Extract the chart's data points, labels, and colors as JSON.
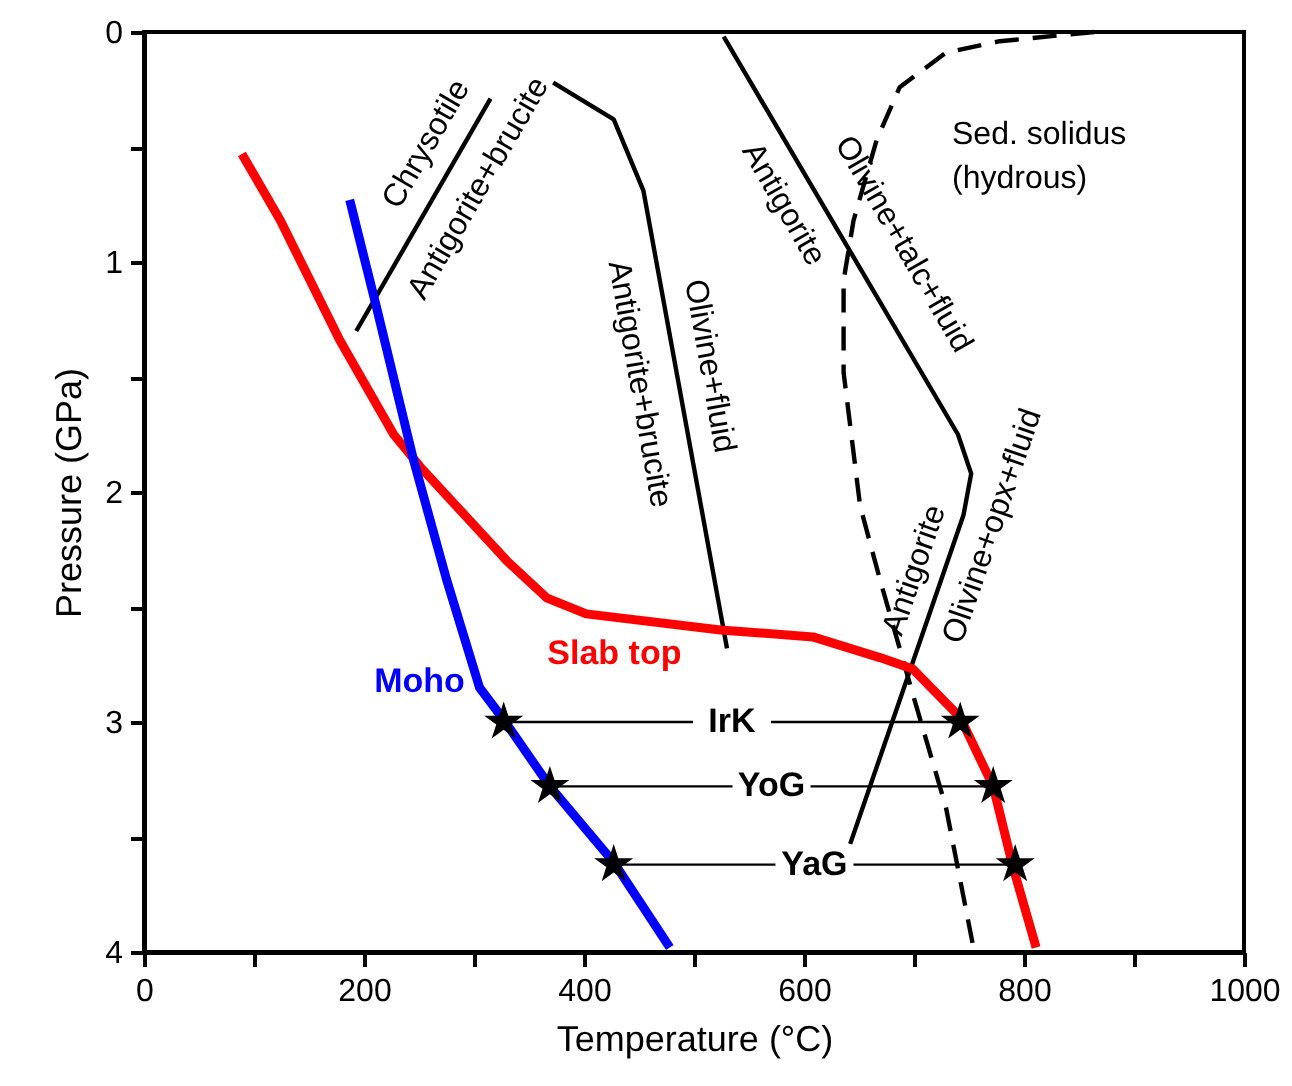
{
  "chart_data": {
    "type": "line",
    "xlabel": "Temperature (°C)",
    "ylabel": "Pressure (GPa)",
    "xlim": [
      0,
      1000
    ],
    "ylim": [
      4,
      0
    ],
    "xticks": [
      0,
      {
        "value": 100,
        "label": null
      },
      200,
      {
        "value": 300,
        "label": null
      },
      400,
      {
        "value": 500,
        "label": null
      },
      600,
      {
        "value": 700,
        "label": null
      },
      800,
      {
        "value": 900,
        "label": null
      },
      1000
    ],
    "yticks": [
      0,
      {
        "value": 0.5,
        "label": null
      },
      1,
      {
        "value": 1.5,
        "label": null
      },
      2,
      {
        "value": 2.5,
        "label": null
      },
      3,
      {
        "value": 3.5,
        "label": null
      },
      4
    ],
    "grid": false,
    "marker": "none",
    "line_style": "solid",
    "series": [
      {
        "color": "#000000",
        "x": [
          193,
          315
        ],
        "values": [
          1.3,
          0.29
        ]
      },
      {
        "color": "#000000",
        "x": [
          372,
          427,
          454,
          530
        ],
        "values": [
          0.22,
          0.38,
          0.69,
          2.68
        ]
      },
      {
        "color": "#000000",
        "x": [
          527,
          740,
          752,
          745,
          642
        ],
        "values": [
          0.02,
          1.75,
          1.92,
          2.1,
          3.53
        ]
      },
      {
        "color": "#000000",
        "line_style": "dashed",
        "x": [
          864,
          778,
          729,
          687,
          666,
          645,
          636,
          636,
          651,
          669,
          699,
          729,
          754
        ],
        "values": [
          0.0,
          0.04,
          0.09,
          0.24,
          0.47,
          0.82,
          1.08,
          1.48,
          2.06,
          2.38,
          2.88,
          3.37,
          3.98
        ]
      },
      {
        "name": "Slab top",
        "color": "#ff0000",
        "x": [
          89,
          124,
          178,
          227,
          251,
          330,
          366,
          402,
          524,
          608,
          669,
          699,
          742,
          772,
          790,
          811
        ],
        "values": [
          0.53,
          0.82,
          1.34,
          1.75,
          1.89,
          2.3,
          2.46,
          2.53,
          2.6,
          2.63,
          2.72,
          2.77,
          2.98,
          3.28,
          3.63,
          3.98
        ]
      },
      {
        "name": "Moho",
        "color": "#0000ff",
        "x": [
          187,
          211,
          245,
          275,
          305,
          327,
          369,
          427,
          478
        ],
        "values": [
          0.73,
          1.19,
          1.86,
          2.38,
          2.85,
          2.99,
          3.28,
          3.61,
          3.98
        ]
      },
      {
        "name": "IrK",
        "color": "#000000",
        "marker": "star",
        "x": [
          327,
          742
        ],
        "values": [
          3.0,
          3.0
        ]
      },
      {
        "name": "YoG",
        "color": "#000000",
        "marker": "star",
        "x": [
          369,
          772
        ],
        "values": [
          3.28,
          3.28
        ]
      },
      {
        "name": "YaG",
        "color": "#000000",
        "marker": "star",
        "x": [
          427,
          792
        ],
        "values": [
          3.62,
          3.62
        ]
      }
    ],
    "annotations": [
      "Chrysotile",
      "Antigorite+brucite",
      "Antigorite+brucite",
      "Olivine+fluid",
      "Antigorite",
      "Olivine+talc+fluid",
      "Antigorite",
      "Olivine+opx+fluid",
      "Sed. solidus\n(hydrous)"
    ]
  }
}
